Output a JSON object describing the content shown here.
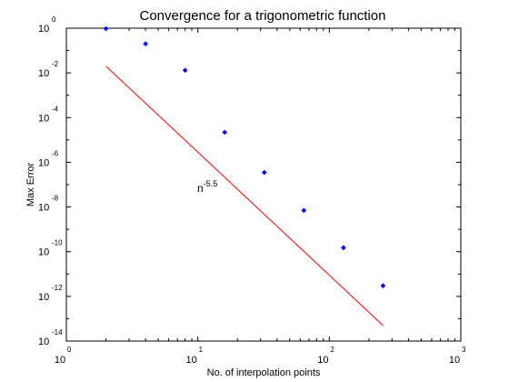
{
  "chart_data": {
    "type": "scatter",
    "title": "Convergence for a trigonometric function",
    "xlabel": "No. of interpolation points",
    "ylabel": "Max Error",
    "xscale": "log",
    "yscale": "log",
    "xlim": [
      1,
      1000
    ],
    "ylim": [
      1e-14,
      1
    ],
    "grid": false,
    "x_ticks": [
      {
        "base": "10",
        "exp": "0"
      },
      {
        "base": "10",
        "exp": "1"
      },
      {
        "base": "10",
        "exp": "2"
      },
      {
        "base": "10",
        "exp": "3"
      }
    ],
    "y_ticks": [
      {
        "base": "10",
        "exp": "0"
      },
      {
        "base": "10",
        "exp": "-2"
      },
      {
        "base": "10",
        "exp": "-4"
      },
      {
        "base": "10",
        "exp": "-6"
      },
      {
        "base": "10",
        "exp": "-8"
      },
      {
        "base": "10",
        "exp": "-10"
      },
      {
        "base": "10",
        "exp": "-12"
      },
      {
        "base": "10",
        "exp": "-14"
      }
    ],
    "series": [
      {
        "marker": "dot",
        "color": "#0000ff",
        "x": [
          2,
          4,
          8,
          16,
          32,
          64,
          128,
          256
        ],
        "y": [
          0.95,
          0.2,
          0.013,
          2.2e-05,
          3.5e-07,
          7e-09,
          1.5e-10,
          3e-12
        ]
      },
      {
        "type": "line",
        "color": "#ff0000",
        "x": [
          2,
          256
        ],
        "y": [
          0.02,
          5e-14
        ]
      }
    ],
    "annotation": {
      "base": "n",
      "exp": "-5.5",
      "x": 10,
      "y": 1e-07
    }
  }
}
